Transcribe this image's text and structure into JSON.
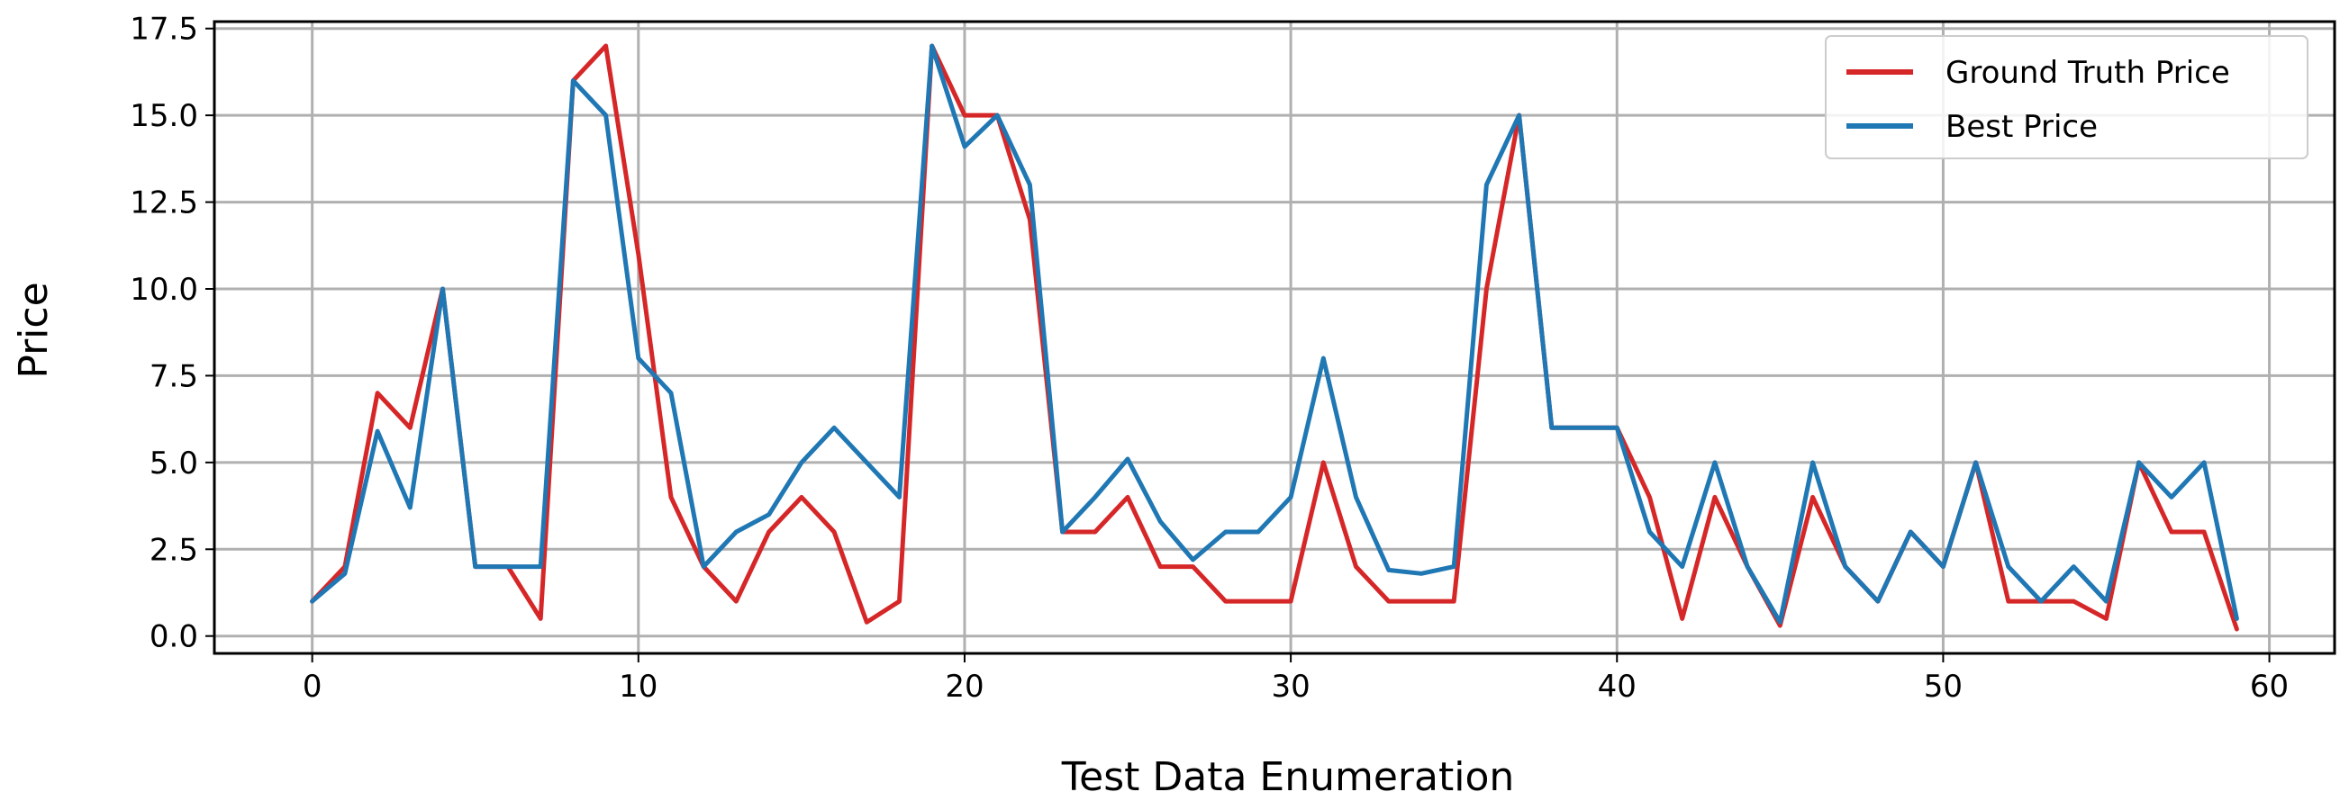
{
  "chart_data": {
    "type": "line",
    "title": "",
    "xlabel": "Test Data Enumeration",
    "ylabel": "Price",
    "xlim": [
      -3,
      62
    ],
    "ylim": [
      -0.5,
      17.7
    ],
    "xticks": [
      "0",
      "10",
      "20",
      "30",
      "40",
      "50",
      "60"
    ],
    "yticks": [
      "0.0",
      "2.5",
      "5.0",
      "7.5",
      "10.0",
      "12.5",
      "15.0",
      "17.5"
    ],
    "grid": true,
    "legend_position": "top-right",
    "x": [
      0,
      1,
      2,
      3,
      4,
      5,
      6,
      7,
      8,
      9,
      10,
      11,
      12,
      13,
      14,
      15,
      16,
      17,
      18,
      19,
      20,
      21,
      22,
      23,
      24,
      25,
      26,
      27,
      28,
      29,
      30,
      31,
      32,
      33,
      34,
      35,
      36,
      37,
      38,
      39,
      40,
      41,
      42,
      43,
      44,
      45,
      46,
      47,
      48,
      49,
      50,
      51,
      52,
      53,
      54,
      55,
      56,
      57,
      58,
      59
    ],
    "series": [
      {
        "name": "Ground Truth Price",
        "color": "#d62728",
        "values": [
          1,
          2,
          7,
          6,
          10,
          2,
          2,
          0.5,
          16,
          17,
          11,
          4,
          2,
          1,
          3,
          4,
          3,
          0.4,
          1,
          17,
          15,
          15,
          12,
          3,
          3,
          4,
          2,
          2,
          1,
          1,
          1,
          5,
          2,
          1,
          1,
          1,
          10,
          15,
          6,
          6,
          6,
          4,
          0.5,
          4,
          2,
          0.3,
          4,
          2,
          1,
          3,
          2,
          5,
          1,
          1,
          1,
          0.5,
          5,
          3,
          3,
          0.2
        ]
      },
      {
        "name": "Best Price",
        "color": "#1f77b4",
        "values": [
          1,
          1.8,
          5.9,
          3.7,
          10,
          2,
          2,
          2,
          16,
          15,
          8,
          7,
          2,
          3,
          3.5,
          5,
          6,
          5,
          4,
          17,
          14.1,
          15,
          13,
          3,
          4,
          5.1,
          3.3,
          2.2,
          3,
          3,
          4,
          8,
          4,
          1.9,
          1.8,
          2,
          13,
          15,
          6,
          6,
          6,
          3,
          2,
          5,
          2,
          0.4,
          5,
          2,
          1,
          3,
          2,
          5,
          2,
          1,
          2,
          1,
          5,
          4,
          5,
          0.5
        ]
      }
    ]
  }
}
